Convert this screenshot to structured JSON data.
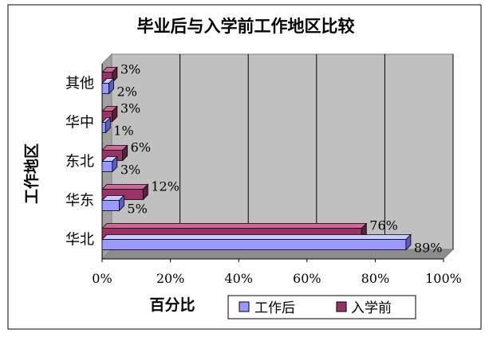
{
  "chart_data": {
    "type": "bar",
    "orientation": "horizontal",
    "style": "3d-clustered",
    "title": "毕业后与入学前工作地区比较",
    "xlabel": "百分比",
    "ylabel": "工作地区",
    "categories": [
      "华北",
      "华东",
      "东北",
      "华中",
      "其他"
    ],
    "series": [
      {
        "name": "工作后",
        "values": [
          89,
          5,
          3,
          1,
          2
        ],
        "value_labels": [
          "89%",
          "5%",
          "3%",
          "1%",
          "2%"
        ],
        "color": "#9999ff",
        "top_color": "#ccccff",
        "side_color": "#5c5cc8"
      },
      {
        "name": "入学前",
        "values": [
          76,
          12,
          6,
          3,
          3
        ],
        "value_labels": [
          "76%",
          "12%",
          "6%",
          "3%",
          "3%"
        ],
        "color": "#993366",
        "top_color": "#cc6699",
        "side_color": "#5c1f3d"
      }
    ],
    "xlim": [
      0,
      100
    ],
    "xticks": [
      0,
      20,
      40,
      60,
      80,
      100
    ],
    "xtick_labels": [
      "0%",
      "20%",
      "40%",
      "60%",
      "80%",
      "100%"
    ],
    "grid": true,
    "legend_position": "bottom",
    "colors": {
      "plot_wall": "#c0c0c0",
      "grid": "#000000",
      "background": "#ffffff"
    }
  }
}
